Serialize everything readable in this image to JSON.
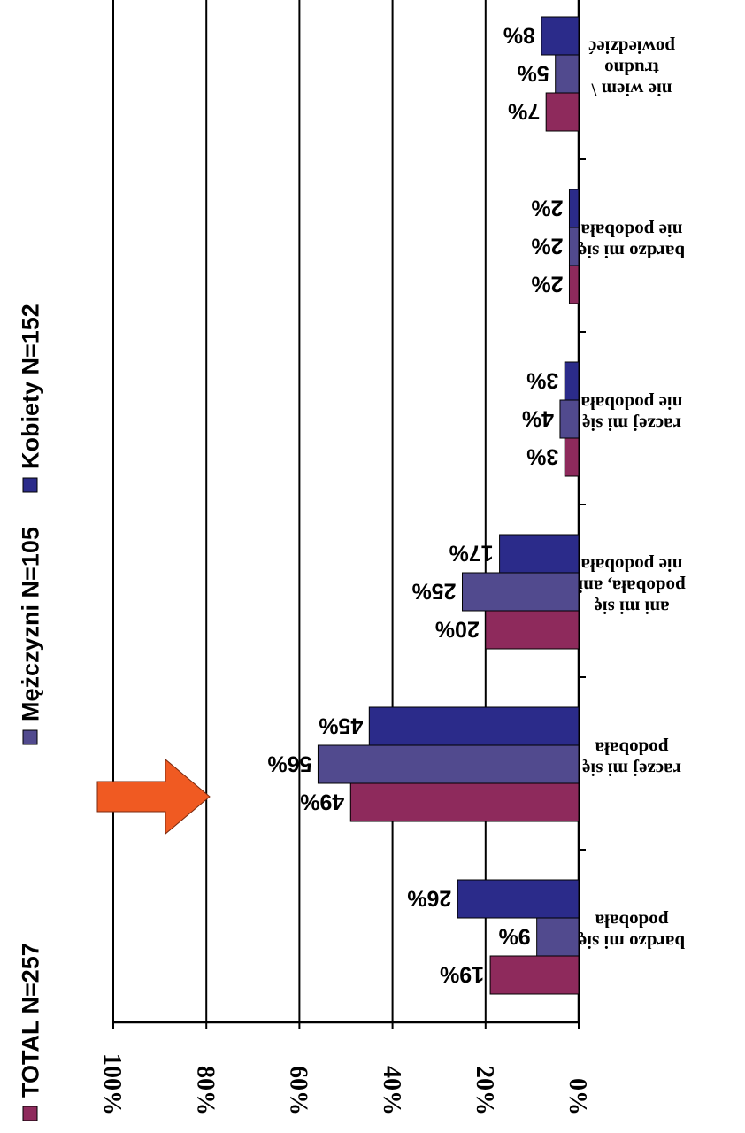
{
  "colors": {
    "series": [
      "#8e2a5c",
      "#514a8e",
      "#2b2b8a"
    ],
    "arrow": "#f05a22",
    "grid": "#000000"
  },
  "chart_data": {
    "type": "bar",
    "orientation": "horizontal",
    "page_rotation_degrees": 180,
    "categories": [
      [
        "bardzo mi się",
        "podobała"
      ],
      [
        "raczej mi się",
        "podobała"
      ],
      [
        "ani mi się",
        "podobała, ani",
        "nie podobała"
      ],
      [
        "raczej mi się",
        "nie podobała"
      ],
      [
        "bardzo mi się",
        "nie podobała"
      ],
      [
        "nie wiem \\",
        "trudno",
        "powiedzieć"
      ]
    ],
    "series": [
      {
        "name": "TOTAL N=257",
        "values": [
          19,
          49,
          20,
          3,
          2,
          7
        ]
      },
      {
        "name": "Mężczyzni N=105",
        "values": [
          9,
          56,
          25,
          4,
          2,
          5
        ]
      },
      {
        "name": "Kobiety N=152",
        "values": [
          26,
          45,
          17,
          3,
          2,
          8
        ]
      }
    ],
    "value_axis": {
      "range": [
        0,
        100
      ],
      "ticks": [
        0,
        20,
        40,
        60,
        80,
        100
      ],
      "tick_labels": [
        "0%",
        "20%",
        "40%",
        "60%",
        "80%",
        "100%"
      ]
    },
    "data_label_suffix": "%",
    "grid": true,
    "legend_position": "top (image is rotated 180°)",
    "annotation": "orange arrow pointing at Mężczyzni bar of category 2"
  }
}
